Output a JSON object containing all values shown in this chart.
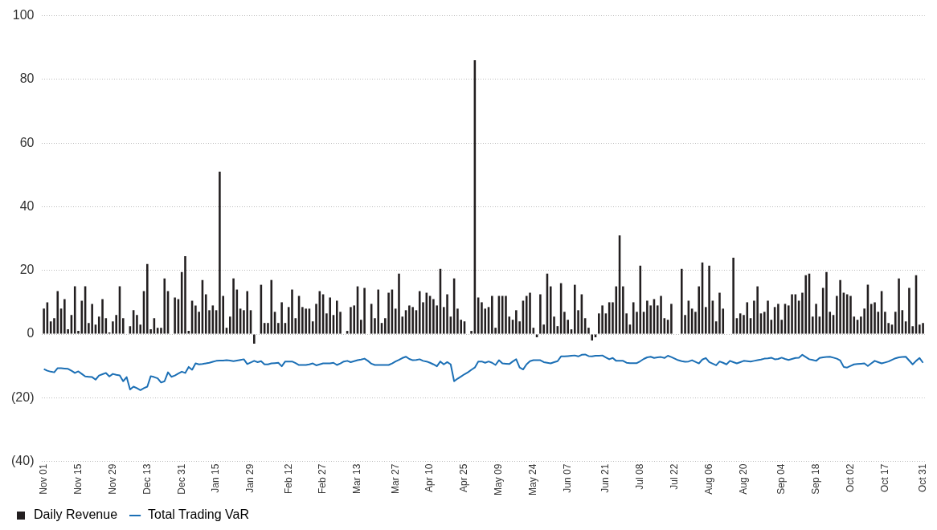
{
  "chart_data": {
    "type": "bar",
    "categories": [
      "Nov 01",
      null,
      null,
      null,
      null,
      null,
      null,
      null,
      null,
      null,
      "Nov 15",
      null,
      null,
      null,
      null,
      null,
      null,
      null,
      null,
      null,
      "Nov 29",
      null,
      null,
      null,
      null,
      null,
      null,
      null,
      null,
      null,
      "Dec 13",
      null,
      null,
      null,
      null,
      null,
      null,
      null,
      null,
      null,
      "Dec 31",
      null,
      null,
      null,
      null,
      null,
      null,
      null,
      null,
      null,
      "Jan 15",
      null,
      null,
      null,
      null,
      null,
      null,
      null,
      null,
      null,
      "Jan 29",
      null,
      null,
      null,
      null,
      null,
      null,
      null,
      null,
      null,
      null,
      "Feb 12",
      null,
      null,
      null,
      null,
      null,
      null,
      null,
      null,
      null,
      "Feb 27",
      null,
      null,
      null,
      null,
      null,
      null,
      null,
      null,
      null,
      "Mar 13",
      null,
      null,
      null,
      null,
      null,
      null,
      null,
      null,
      null,
      null,
      "Mar 27",
      null,
      null,
      null,
      null,
      null,
      null,
      null,
      null,
      null,
      "Apr 10",
      null,
      null,
      null,
      null,
      null,
      null,
      null,
      null,
      null,
      "Apr 25",
      null,
      null,
      null,
      null,
      null,
      null,
      null,
      null,
      null,
      "May 09",
      null,
      null,
      null,
      null,
      null,
      null,
      null,
      null,
      null,
      "May 24",
      null,
      null,
      null,
      null,
      null,
      null,
      null,
      null,
      null,
      "Jun 07",
      null,
      null,
      null,
      null,
      null,
      null,
      null,
      null,
      null,
      null,
      "Jun 21",
      null,
      null,
      null,
      null,
      null,
      null,
      null,
      null,
      null,
      "Jul 08",
      null,
      null,
      null,
      null,
      null,
      null,
      null,
      null,
      null,
      "Jul 22",
      null,
      null,
      null,
      null,
      null,
      null,
      null,
      null,
      null,
      "Aug 06",
      null,
      null,
      null,
      null,
      null,
      null,
      null,
      null,
      null,
      "Aug 20",
      null,
      null,
      null,
      null,
      null,
      null,
      null,
      null,
      null,
      null,
      "Sep 04",
      null,
      null,
      null,
      null,
      null,
      null,
      null,
      null,
      null,
      "Sep 18",
      null,
      null,
      null,
      null,
      null,
      null,
      null,
      null,
      null,
      "Oct 02",
      null,
      null,
      null,
      null,
      null,
      null,
      null,
      null,
      null,
      "Oct 17",
      null,
      null,
      null,
      null,
      null,
      null,
      null,
      null,
      null,
      null,
      "Oct 31"
    ],
    "series": [
      {
        "name": "Daily Revenue",
        "color": "#231f20",
        "values": [
          8,
          10,
          4,
          5,
          13.5,
          8,
          11,
          1.5,
          6,
          15,
          1,
          10.5,
          15,
          3.5,
          9.5,
          3,
          5.5,
          11,
          5,
          0.5,
          4,
          6,
          15,
          5,
          0,
          2.5,
          7.5,
          6,
          3,
          13.5,
          22,
          1.5,
          5,
          2,
          2,
          17.5,
          13.5,
          0,
          11.5,
          11,
          19.5,
          24.5,
          1,
          10.5,
          9,
          7,
          17,
          12.5,
          7.5,
          9,
          7.5,
          51,
          12,
          2,
          5.5,
          17.5,
          14,
          8,
          7.5,
          13.5,
          7.5,
          -3,
          0,
          15.5,
          3.5,
          3.5,
          17,
          7,
          3.5,
          10,
          3.5,
          8.5,
          14,
          5,
          12,
          8.5,
          8,
          8,
          4,
          9.5,
          13.5,
          12.5,
          6.5,
          11.5,
          6,
          10.5,
          7,
          0,
          1,
          8.5,
          9,
          15,
          4.5,
          14.5,
          0,
          9.5,
          5,
          14,
          3.5,
          5,
          13,
          14,
          8,
          19,
          5.5,
          7.5,
          9,
          8.5,
          7.5,
          13.5,
          10,
          13,
          12,
          11,
          9,
          20.5,
          8.5,
          12.5,
          5.5,
          17.5,
          8,
          4.5,
          4,
          0,
          1,
          86,
          11.5,
          10,
          8,
          8.5,
          12,
          2,
          12,
          12,
          12,
          5.5,
          4.5,
          7.5,
          4,
          10.5,
          12,
          13,
          2,
          -1,
          12.5,
          3,
          19,
          15,
          5.5,
          2.5,
          16,
          7,
          4.5,
          1.5,
          15.5,
          7.5,
          12.5,
          5,
          2,
          -2,
          -1,
          6.5,
          9,
          6.5,
          10,
          10,
          15,
          31,
          15,
          6.5,
          3,
          10,
          7,
          21.5,
          7,
          10.5,
          9,
          11,
          9,
          12,
          5,
          4.5,
          9.5,
          0,
          0,
          20.5,
          6,
          10.5,
          8,
          7,
          15,
          22.5,
          8.5,
          21.5,
          10.5,
          4,
          13,
          8,
          0,
          0,
          24,
          5,
          6.5,
          6,
          10,
          5,
          10.5,
          15,
          6.5,
          7,
          10.5,
          4.5,
          8.5,
          9.5,
          4.5,
          9.5,
          9,
          12.5,
          12.5,
          10.5,
          13,
          18.5,
          19,
          5.5,
          9.5,
          5.5,
          14.5,
          19.5,
          7,
          6,
          12,
          17,
          13,
          12.5,
          12,
          5.5,
          4.5,
          5.5,
          8,
          15.5,
          9.5,
          10,
          7,
          13.5,
          7,
          3.5,
          3,
          7,
          17.5,
          7.5,
          4,
          14.5,
          2.5,
          18.5,
          3,
          3.5
        ]
      },
      {
        "type": "line",
        "name": "Total Trading VaR",
        "color": "#1b6fb5",
        "values": [
          -11,
          -11.5,
          -11.8,
          -12,
          -10.7,
          -10.7,
          -10.8,
          -10.9,
          -11.5,
          -12.2,
          -11.7,
          -12.5,
          -13.3,
          -13.4,
          -13.5,
          -14.3,
          -13,
          -12.6,
          -12.2,
          -13.3,
          -12.5,
          -12.8,
          -13,
          -14.8,
          -13.5,
          -17.4,
          -16.5,
          -17,
          -17.6,
          -17,
          -16.5,
          -13.2,
          -13.5,
          -13.9,
          -15.2,
          -14.8,
          -12,
          -13.4,
          -13,
          -12.4,
          -11.8,
          -12.2,
          -10.3,
          -11.2,
          -9.2,
          -9.5,
          -9.4,
          -9.2,
          -9,
          -8.7,
          -8.4,
          -8.3,
          -8.3,
          -8.2,
          -8.3,
          -8.5,
          -8.3,
          -8.1,
          -7.9,
          -9.4,
          -8.9,
          -8.4,
          -8.8,
          -8.5,
          -9.5,
          -9.5,
          -9.2,
          -9.1,
          -9,
          -10.1,
          -8.6,
          -8.6,
          -8.6,
          -9.1,
          -9.7,
          -9.7,
          -9.7,
          -9.5,
          -9.2,
          -9.8,
          -9.5,
          -9.2,
          -9.2,
          -9.2,
          -9,
          -9.7,
          -9.2,
          -8.6,
          -8.4,
          -8.8,
          -8.5,
          -8.2,
          -8,
          -7.7,
          -8.4,
          -9.3,
          -9.7,
          -9.7,
          -9.7,
          -9.7,
          -9.7,
          -9.2,
          -8.6,
          -8.1,
          -7.5,
          -7.1,
          -7.8,
          -8.2,
          -8.1,
          -7.9,
          -8.4,
          -8.6,
          -9,
          -9.5,
          -10.1,
          -8.6,
          -9.5,
          -8.8,
          -9.5,
          -14.8,
          -14,
          -13.3,
          -12.6,
          -12,
          -11.2,
          -10.5,
          -8.6,
          -8.6,
          -9,
          -8.6,
          -9,
          -9.7,
          -8.2,
          -9.2,
          -9.3,
          -9.4,
          -8.6,
          -7.9,
          -10.5,
          -11.1,
          -9.5,
          -8.5,
          -8.2,
          -8.2,
          -8.2,
          -8.8,
          -9,
          -9.2,
          -8.8,
          -8.5,
          -7,
          -7,
          -6.9,
          -6.8,
          -6.7,
          -7,
          -6.5,
          -6.4,
          -6.9,
          -7,
          -6.8,
          -6.8,
          -6.7,
          -7.3,
          -7.9,
          -7.5,
          -8.4,
          -8.4,
          -8.4,
          -9,
          -9.1,
          -9.1,
          -9.1,
          -8.5,
          -7.8,
          -7.3,
          -7.1,
          -7.5,
          -7.3,
          -7.2,
          -7.5,
          -6.8,
          -7.2,
          -7.7,
          -8.2,
          -8.5,
          -8.7,
          -8.6,
          -8.2,
          -8.7,
          -9.2,
          -8,
          -7.5,
          -8.8,
          -9.3,
          -9.8,
          -8.6,
          -9,
          -9.5,
          -8.4,
          -8.8,
          -9.2,
          -8.8,
          -8.4,
          -8.5,
          -8.6,
          -8.4,
          -8.2,
          -8,
          -7.7,
          -7.6,
          -7.4,
          -7.9,
          -7.8,
          -7.4,
          -7.8,
          -8.1,
          -7.8,
          -7.5,
          -7.4,
          -6.5,
          -7.2,
          -7.9,
          -8.1,
          -8.4,
          -7.5,
          -7.3,
          -7.2,
          -7.1,
          -7.4,
          -7.7,
          -8.3,
          -10.3,
          -10.5,
          -10,
          -9.5,
          -9.4,
          -9.3,
          -9.2,
          -10,
          -9.2,
          -8.4,
          -8.8,
          -9.2,
          -8.9,
          -8.6,
          -8.1,
          -7.6,
          -7.3,
          -7.2,
          -7.1,
          -8.3,
          -9.5,
          -8.4,
          -7.5,
          -9
        ]
      }
    ],
    "ylim": [
      -40,
      100
    ],
    "yticks": [
      {
        "value": -40,
        "label": "(40)"
      },
      {
        "value": -20,
        "label": "(20)"
      },
      0,
      20,
      40,
      60,
      80,
      100
    ],
    "grid": "y",
    "legend": "bottom left",
    "marker": "none",
    "line_style": "solid"
  }
}
